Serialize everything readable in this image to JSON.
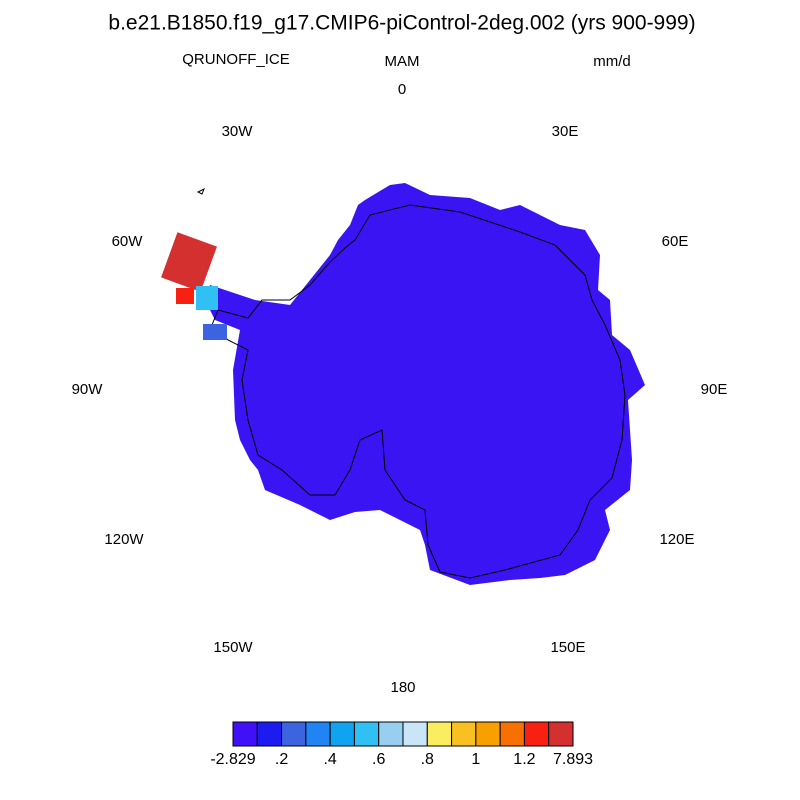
{
  "title": "b.e21.B1850.f19_g17.CMIP6-piControl-2deg.002 (yrs 900-999)",
  "left_string": "QRUNOFF_ICE",
  "center_string": "MAM",
  "right_string": "mm/d",
  "longitude_labels": [
    "0",
    "30E",
    "60E",
    "90E",
    "120E",
    "150E",
    "180",
    "150W",
    "120W",
    "90W",
    "60W",
    "30W"
  ],
  "colorbar": {
    "colors": [
      "#4010f8",
      "#1c1cf0",
      "#3c64e0",
      "#2084f4",
      "#10a4f0",
      "#30c0f4",
      "#98cef0",
      "#c8e6f8",
      "#fcec60",
      "#f8c020",
      "#f8a000",
      "#f87000",
      "#f82010",
      "#d43030"
    ],
    "labels": [
      -2.829,
      {
        "value": 0.2,
        "label": ".2"
      },
      {
        "value": 0.4,
        "label": ".4"
      },
      {
        "value": 0.6,
        "label": ".6"
      },
      {
        "value": 0.8,
        "label": ".8"
      },
      1,
      1.2,
      7.893
    ]
  }
}
